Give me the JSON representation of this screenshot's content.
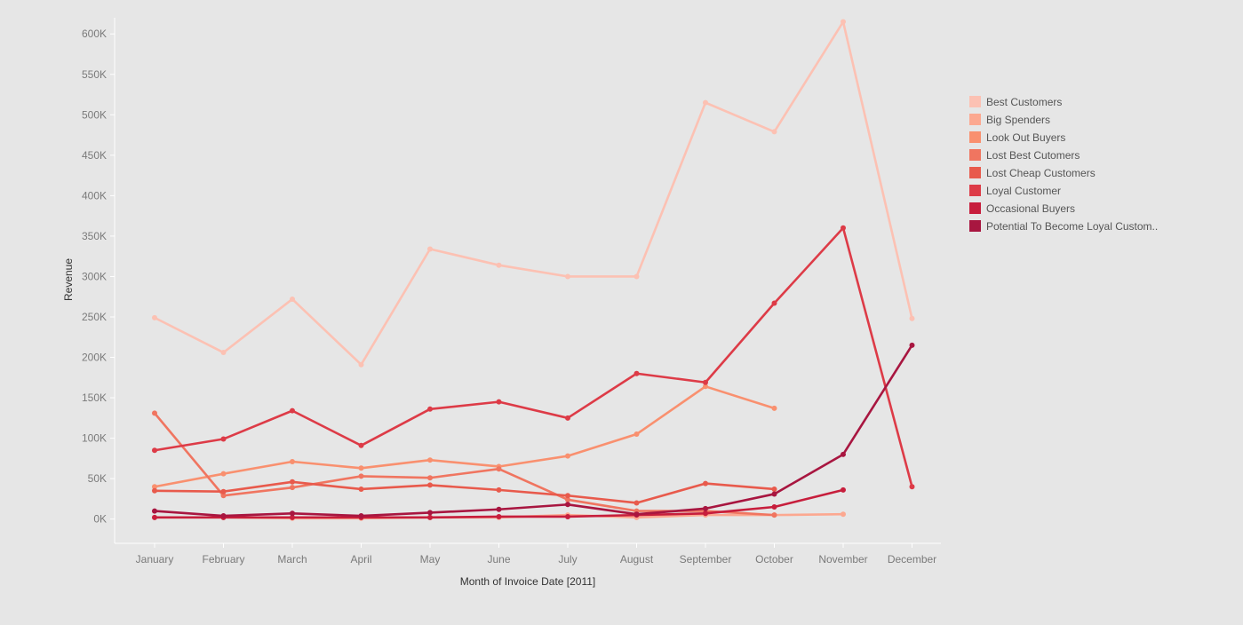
{
  "chart_data": {
    "type": "line",
    "xlabel": "Month of Invoice Date [2011]",
    "ylabel": "Revenue",
    "ylim": [
      -30000,
      620000
    ],
    "y_ticks": [
      0,
      50000,
      100000,
      150000,
      200000,
      250000,
      300000,
      350000,
      400000,
      450000,
      500000,
      550000,
      600000
    ],
    "y_tick_labels": [
      "0K",
      "50K",
      "100K",
      "150K",
      "200K",
      "250K",
      "300K",
      "350K",
      "400K",
      "450K",
      "500K",
      "550K",
      "600K"
    ],
    "categories": [
      "January",
      "February",
      "March",
      "April",
      "May",
      "June",
      "July",
      "August",
      "September",
      "October",
      "November",
      "December"
    ],
    "grid": false,
    "legend_position": "right",
    "series": [
      {
        "name": "Best Customers",
        "color": "#fcc1b3",
        "values": [
          249000,
          206000,
          272000,
          191000,
          334000,
          314000,
          300000,
          300000,
          515000,
          479000,
          615000,
          248000
        ]
      },
      {
        "name": "Big Spenders",
        "color": "#fca890",
        "values": [
          2000,
          2000,
          1000,
          1000,
          2000,
          2000,
          5000,
          2000,
          5000,
          5000,
          6000,
          null
        ]
      },
      {
        "name": "Look Out Buyers",
        "color": "#f9906f",
        "values": [
          40000,
          56000,
          71000,
          63000,
          73000,
          65000,
          78000,
          105000,
          164000,
          137000,
          null,
          null
        ]
      },
      {
        "name": "Lost Best Cutomers",
        "color": "#f07560",
        "values": [
          131000,
          29000,
          39000,
          53000,
          51000,
          62000,
          24000,
          10000,
          10000,
          5000,
          null,
          null
        ]
      },
      {
        "name": "Lost Cheap Customers",
        "color": "#e85a4c",
        "values": [
          35000,
          34000,
          46000,
          37000,
          42000,
          36000,
          29000,
          20000,
          44000,
          37000,
          null,
          null
        ]
      },
      {
        "name": "Loyal Customer",
        "color": "#dd3b47",
        "values": [
          85000,
          99000,
          134000,
          91000,
          136000,
          145000,
          125000,
          180000,
          169000,
          267000,
          360000,
          40000
        ]
      },
      {
        "name": "Occasional Buyers",
        "color": "#c71e3c",
        "values": [
          2000,
          2000,
          2000,
          2000,
          2000,
          3000,
          3000,
          5000,
          7000,
          15000,
          36000,
          null
        ]
      },
      {
        "name": "Potential To Become Loyal Custom..",
        "color": "#a81640",
        "values": [
          10000,
          4000,
          7000,
          4000,
          8000,
          12000,
          18000,
          6000,
          13000,
          31000,
          80000,
          215000
        ]
      }
    ]
  }
}
